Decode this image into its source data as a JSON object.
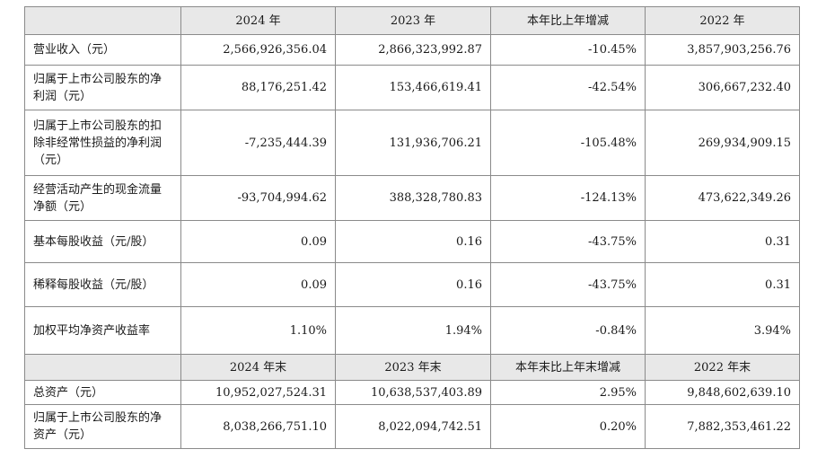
{
  "table": {
    "header1": [
      "",
      "2024 年",
      "2023 年",
      "本年比上年增减",
      "2022 年"
    ],
    "rows1": [
      {
        "label": "营业收入（元）",
        "values": [
          "2,566,926,356.04",
          "2,866,323,992.87",
          "-10.45%",
          "3,857,903,256.76"
        ]
      },
      {
        "label": "归属于上市公司股东的净利润（元）",
        "values": [
          "88,176,251.42",
          "153,466,619.41",
          "-42.54%",
          "306,667,232.40"
        ]
      },
      {
        "label": "归属于上市公司股东的扣除非经常性损益的净利润（元）",
        "values": [
          "-7,235,444.39",
          "131,936,706.21",
          "-105.48%",
          "269,934,909.15"
        ]
      },
      {
        "label": "经营活动产生的现金流量净额（元）",
        "values": [
          "-93,704,994.62",
          "388,328,780.83",
          "-124.13%",
          "473,622,349.26"
        ]
      },
      {
        "label": "基本每股收益（元/股）",
        "values": [
          "0.09",
          "0.16",
          "-43.75%",
          "0.31"
        ]
      },
      {
        "label": "稀释每股收益（元/股）",
        "values": [
          "0.09",
          "0.16",
          "-43.75%",
          "0.31"
        ]
      },
      {
        "label": "加权平均净资产收益率",
        "values": [
          "1.10%",
          "1.94%",
          "-0.84%",
          "3.94%"
        ]
      }
    ],
    "header2": [
      "",
      "2024 年末",
      "2023 年末",
      "本年末比上年末增减",
      "2022 年末"
    ],
    "rows2": [
      {
        "label": "总资产（元）",
        "values": [
          "10,952,027,524.31",
          "10,638,537,403.89",
          "2.95%",
          "9,848,602,639.10"
        ]
      },
      {
        "label": "归属于上市公司股东的净资产（元）",
        "values": [
          "8,038,266,751.10",
          "8,022,094,742.51",
          "0.20%",
          "7,882,353,461.22"
        ]
      }
    ]
  }
}
